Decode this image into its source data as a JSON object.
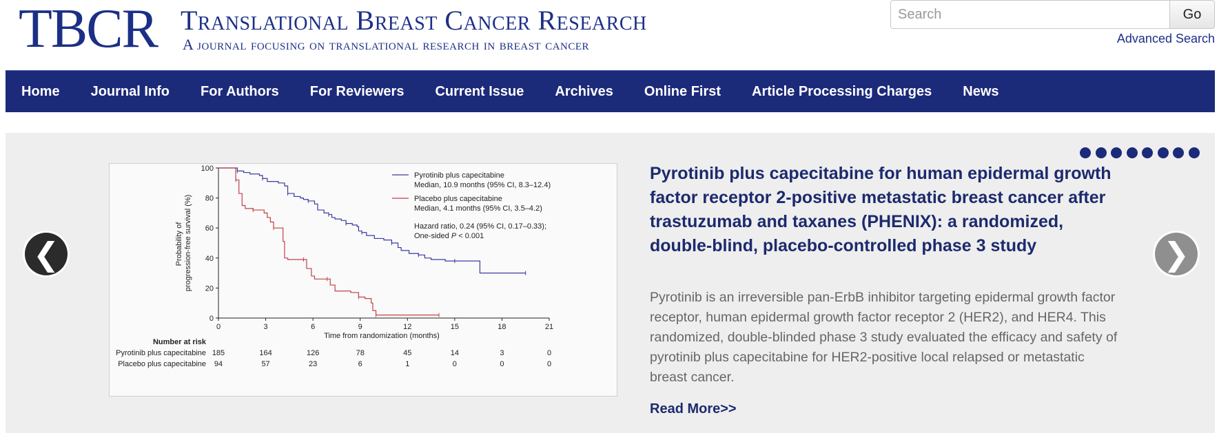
{
  "header": {
    "logo_mark": "TBCR",
    "logo_title": "Translational Breast Cancer Research",
    "logo_tagline": "A journal focusing on translational research in breast cancer",
    "search_placeholder": "Search",
    "search_button": "Go",
    "advanced_search": "Advanced Search"
  },
  "nav": {
    "items": [
      "Home",
      "Journal Info",
      "For Authors",
      "For Reviewers",
      "Current Issue",
      "Archives",
      "Online First",
      "Article Processing Charges",
      "News"
    ]
  },
  "carousel": {
    "prev_glyph": "❮",
    "next_glyph": "❯",
    "slide_count": 8,
    "active_color": "#1c2a7a",
    "article": {
      "title": "Pyrotinib plus capecitabine for human epidermal growth factor receptor 2-positive metastatic breast cancer after trastuzumab and taxanes (PHENIX): a randomized, double-blind, placebo-controlled phase 3 study",
      "abstract": "Pyrotinib is an irreversible pan-ErbB inhibitor targeting epidermal growth factor receptor, human epidermal growth factor receptor 2 (HER2), and HER4. This randomized, double-blinded phase 3 study evaluated the efficacy and safety of pyrotinib plus capecitabine for HER2-positive local relapsed or metastatic breast cancer.",
      "read_more": "Read More>>"
    }
  },
  "chart_data": {
    "type": "line",
    "ylabel": "Probability of progression-free survival (%)",
    "xlabel": "Time from randomization (months)",
    "xlim": [
      0,
      21
    ],
    "ylim": [
      0,
      100
    ],
    "x_ticks": [
      0,
      3,
      6,
      9,
      12,
      15,
      18,
      21
    ],
    "y_ticks": [
      0,
      20,
      40,
      60,
      80,
      100
    ],
    "series": [
      {
        "name": "Pyrotinib plus capecitabine",
        "color": "#3a3aa0",
        "legend_line2": "Median, 10.9 months (95% CI, 8.3–12.4)",
        "points": [
          [
            0,
            100
          ],
          [
            0.6,
            100
          ],
          [
            1.2,
            98
          ],
          [
            1.6,
            97
          ],
          [
            2.0,
            96
          ],
          [
            2.6,
            95
          ],
          [
            2.8,
            93
          ],
          [
            3.1,
            91
          ],
          [
            3.8,
            90
          ],
          [
            4.2,
            88
          ],
          [
            4.4,
            83
          ],
          [
            4.8,
            81
          ],
          [
            5.2,
            80
          ],
          [
            5.4,
            79
          ],
          [
            5.7,
            78
          ],
          [
            6.1,
            76
          ],
          [
            6.3,
            72
          ],
          [
            6.7,
            70
          ],
          [
            7.0,
            69
          ],
          [
            7.2,
            67
          ],
          [
            7.4,
            66
          ],
          [
            7.8,
            65
          ],
          [
            8.1,
            63
          ],
          [
            8.5,
            62
          ],
          [
            8.8,
            61
          ],
          [
            8.9,
            58
          ],
          [
            9.1,
            57
          ],
          [
            9.4,
            55
          ],
          [
            9.9,
            53
          ],
          [
            10.5,
            52
          ],
          [
            11.0,
            50
          ],
          [
            11.4,
            47
          ],
          [
            11.6,
            45
          ],
          [
            12.1,
            43
          ],
          [
            12.7,
            42
          ],
          [
            13.1,
            40
          ],
          [
            13.5,
            39
          ],
          [
            14.4,
            38
          ],
          [
            15.0,
            38
          ],
          [
            16.0,
            38
          ],
          [
            16.6,
            38
          ],
          [
            16.6,
            30
          ],
          [
            19.5,
            30
          ]
        ]
      },
      {
        "name": "Placebo plus capecitabine",
        "color": "#c04048",
        "legend_line2": "Median, 4.1 months (95% CI, 3.5–4.2)",
        "points": [
          [
            0,
            100
          ],
          [
            0.9,
            100
          ],
          [
            1.1,
            92
          ],
          [
            1.3,
            83
          ],
          [
            1.5,
            75
          ],
          [
            1.7,
            73
          ],
          [
            2.2,
            72
          ],
          [
            2.9,
            70
          ],
          [
            3.1,
            67
          ],
          [
            3.3,
            64
          ],
          [
            3.5,
            60
          ],
          [
            4.1,
            51
          ],
          [
            4.2,
            40
          ],
          [
            4.4,
            39
          ],
          [
            5.4,
            39
          ],
          [
            5.6,
            33
          ],
          [
            5.9,
            28
          ],
          [
            6.1,
            26
          ],
          [
            6.9,
            26
          ],
          [
            7.1,
            22
          ],
          [
            7.4,
            18
          ],
          [
            8.4,
            17
          ],
          [
            8.9,
            14
          ],
          [
            9.3,
            13
          ],
          [
            9.7,
            10
          ],
          [
            9.8,
            5
          ],
          [
            10.0,
            2
          ],
          [
            10.8,
            2
          ],
          [
            14.0,
            2
          ]
        ]
      }
    ],
    "annotation": [
      "Hazard ratio, 0.24 (95% CI, 0.17–0.33);",
      "One-sided "
    ],
    "annotation_p": "P",
    "annotation_p_rest": " < 0.001",
    "risk_table": {
      "title": "Number at risk",
      "rows": [
        {
          "label": "Pyrotinib plus capecitabine",
          "values": [
            185,
            164,
            126,
            78,
            45,
            14,
            3,
            0
          ]
        },
        {
          "label": "Placebo plus capecitabine",
          "values": [
            94,
            57,
            23,
            6,
            1,
            0,
            0,
            0
          ]
        }
      ]
    }
  }
}
